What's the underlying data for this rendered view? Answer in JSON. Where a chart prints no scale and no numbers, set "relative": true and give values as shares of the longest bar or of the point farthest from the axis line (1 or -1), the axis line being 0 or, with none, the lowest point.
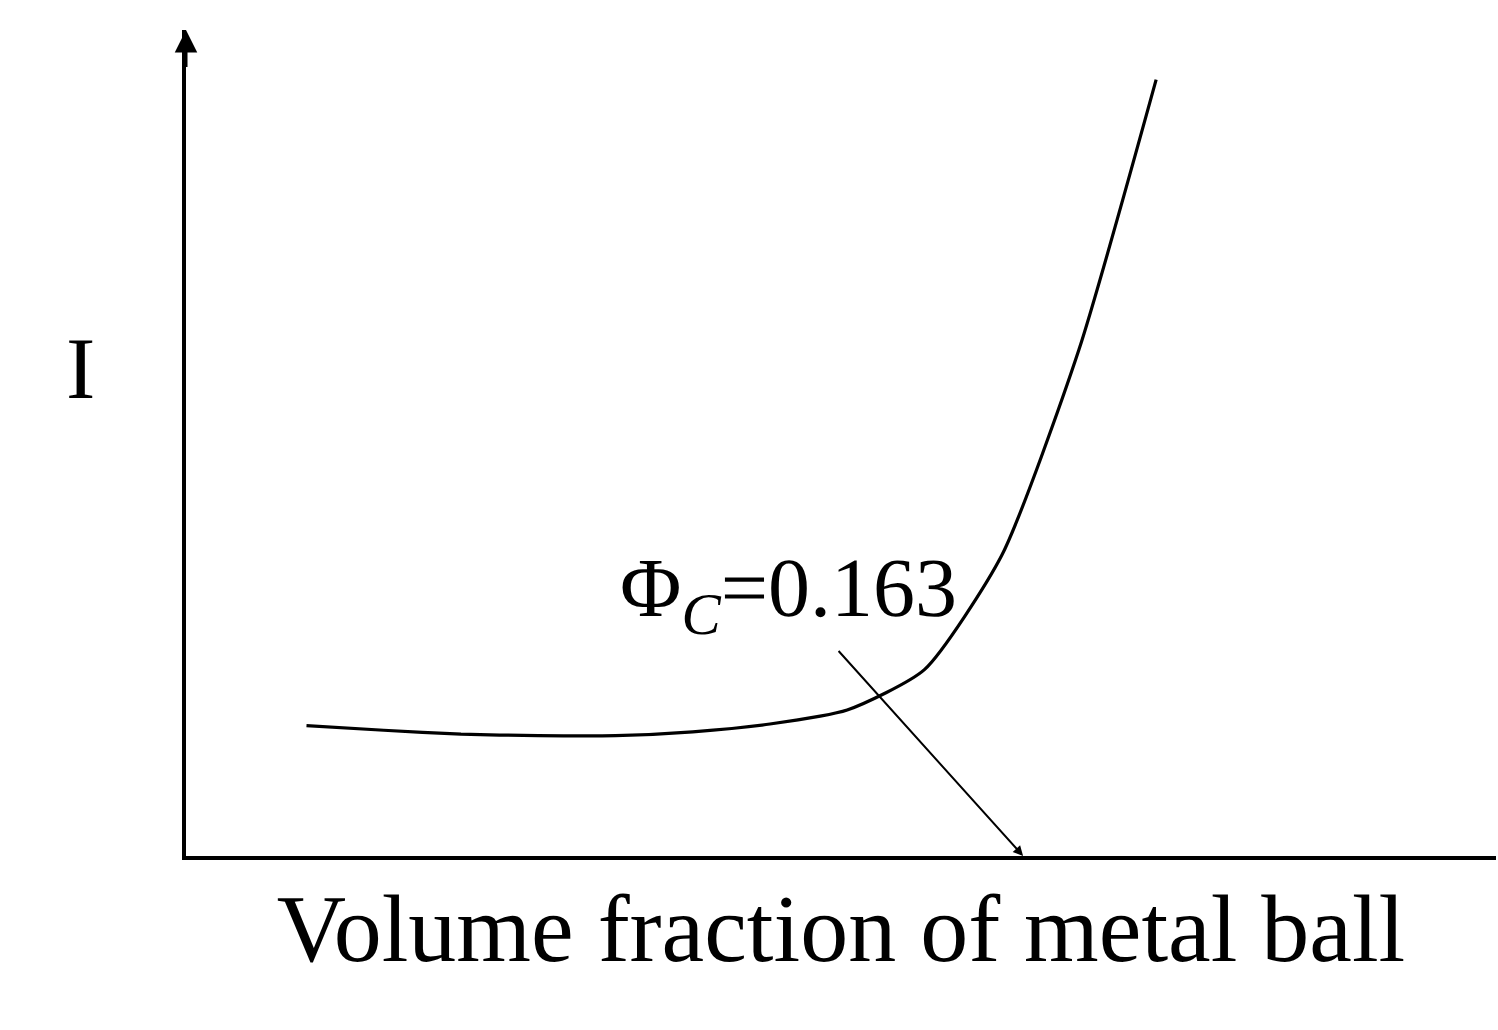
{
  "chart_data": {
    "type": "line",
    "relative": true,
    "xlabel": "Volume fraction of metal ball",
    "ylabel": "I",
    "annotations": [
      "Φ$_{C}$=0.163"
    ],
    "categories": [
      null,
      null,
      null,
      null,
      null,
      null,
      null,
      null,
      null,
      null,
      null,
      null
    ],
    "series": [
      {
        "color": "#000000",
        "values": [
          0.168,
          0.162,
          0.157,
          0.155,
          0.155,
          0.16,
          0.17,
          0.188,
          0.24,
          0.387,
          0.652,
          1.0
        ]
      }
    ],
    "marker": "none",
    "line_style": "solid",
    "legend": false,
    "tick_labels": false
  }
}
